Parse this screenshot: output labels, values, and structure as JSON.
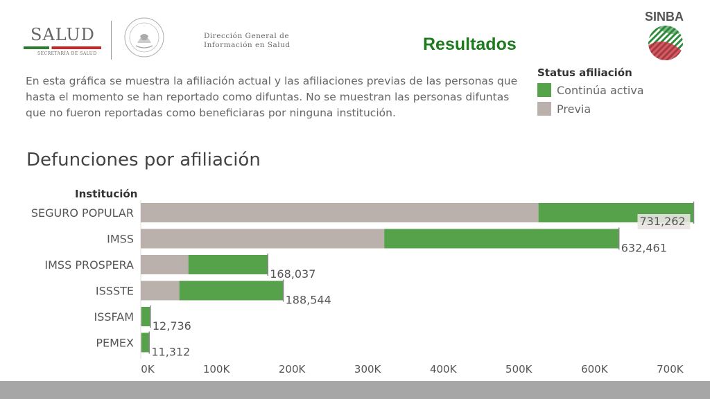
{
  "header": {
    "salud_title": "SALUD",
    "salud_subtitle": "SECRETARÍA DE SALUD",
    "dg_line1": "Dirección General de",
    "dg_line2": "Información en Salud",
    "resultados": "Resultados",
    "sinba": "SINBA"
  },
  "description": {
    "line1": "En esta gráfica se muestra la afiliación actual y las afiliaciones previas de las personas que",
    "line2": "hasta el momento se han reportado como difuntas.  No se muestran las personas difuntas",
    "line3": "que no fueron reportadas como beneficiaras por ninguna institución."
  },
  "legend": {
    "title": "Status afiliación",
    "items": [
      {
        "label": "Continúa activa",
        "color": "#55a24a"
      },
      {
        "label": "Previa",
        "color": "#bab0ac"
      }
    ]
  },
  "chart_data": {
    "type": "bar",
    "orientation": "horizontal",
    "stacked": true,
    "title": "Defunciones por afiliación",
    "ylabel": "Institución",
    "xlabel": "",
    "categories": [
      "SEGURO POPULAR",
      "IMSS",
      "IMSS PROSPERA",
      "ISSSTE",
      "ISSFAM",
      "PEMEX"
    ],
    "series": [
      {
        "name": "Previa",
        "color": "#bab0ac",
        "values": [
          526000,
          322000,
          63000,
          51000,
          1000,
          1000
        ]
      },
      {
        "name": "Continúa activa",
        "color": "#55a24a",
        "values": [
          205262,
          310461,
          105037,
          137544,
          11736,
          10312
        ]
      }
    ],
    "totals": [
      731262,
      632461,
      168037,
      188544,
      12736,
      11312
    ],
    "total_labels": [
      "731,262",
      "632,461",
      "168,037",
      "188,544",
      "12,736",
      "11,312"
    ],
    "xlim": [
      0,
      740000
    ],
    "xticks": [
      0,
      100000,
      200000,
      300000,
      400000,
      500000,
      600000,
      700000
    ],
    "xtick_labels": [
      "0K",
      "100K",
      "200K",
      "300K",
      "400K",
      "500K",
      "600K",
      "700K"
    ]
  }
}
